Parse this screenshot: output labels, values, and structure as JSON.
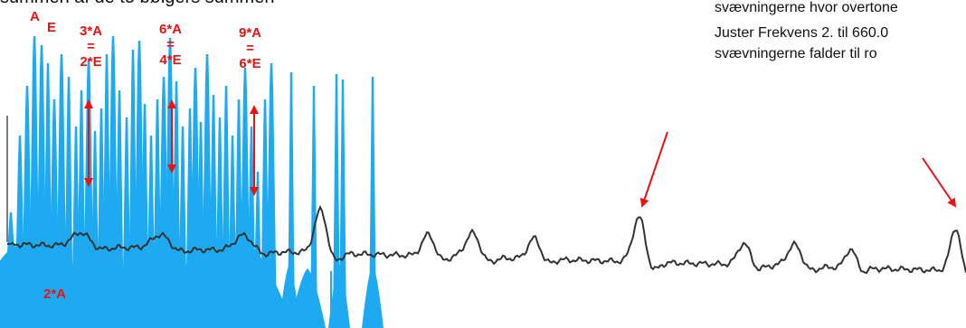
{
  "header": {
    "top_text": "summen af de to bølgers summen",
    "note_lines": [
      "svævningerne hvor overtone",
      "Juster Frekvens 2. til 660.0",
      "svævningerne falder til ro"
    ]
  },
  "chart_data": {
    "type": "area",
    "title": "",
    "xlabel": "",
    "ylabel": "",
    "annotations": [
      {
        "id": "a",
        "lines": [
          "A"
        ]
      },
      {
        "id": "e",
        "lines": [
          "E"
        ]
      },
      {
        "id": "3a",
        "lines": [
          "3*A",
          "=",
          "2*E"
        ]
      },
      {
        "id": "6a",
        "lines": [
          "6*A",
          "=",
          "4*E"
        ]
      },
      {
        "id": "9a",
        "lines": [
          "9*A",
          "=",
          "6*E"
        ]
      },
      {
        "id": "2a",
        "lines": [
          "2*A"
        ]
      }
    ],
    "series": [
      {
        "type": "spectrum-peaks",
        "color": "#1eaaf1"
      },
      {
        "type": "line",
        "color": "#333333"
      }
    ]
  },
  "colors": {
    "spectrum": "#1eaaf1",
    "line": "#333333",
    "annotation": "#ee1111"
  }
}
